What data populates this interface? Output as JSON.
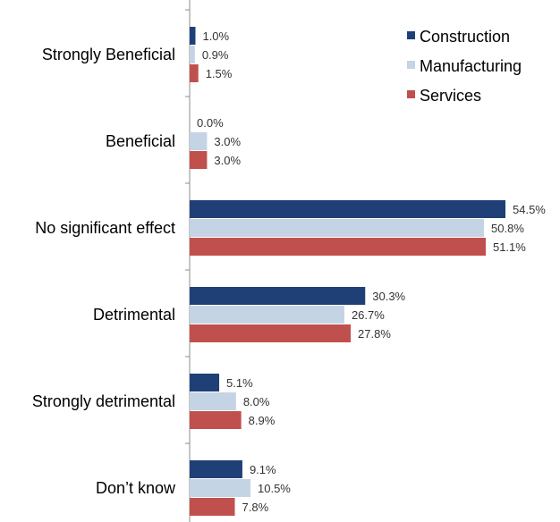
{
  "chart_data": {
    "type": "bar",
    "orientation": "horizontal",
    "title": "",
    "categories": [
      "Strongly Beneficial",
      "Beneficial",
      "No significant effect",
      "Detrimental",
      "Strongly detrimental",
      "Don’t know"
    ],
    "series": [
      {
        "name": "Construction",
        "color": "#1F3F77",
        "values": [
          1.0,
          0.0,
          54.5,
          30.3,
          5.1,
          9.1
        ],
        "labels": [
          "1.0%",
          "0.0%",
          "54.5%",
          "30.3%",
          "5.1%",
          "9.1%"
        ]
      },
      {
        "name": "Manufacturing",
        "color": "#C5D4E4",
        "values": [
          0.9,
          3.0,
          50.8,
          26.7,
          8.0,
          10.5
        ],
        "labels": [
          "0.9%",
          "3.0%",
          "50.8%",
          "26.7%",
          "8.0%",
          "10.5%"
        ]
      },
      {
        "name": "Services",
        "color": "#C0504D",
        "values": [
          1.5,
          3.0,
          51.1,
          27.8,
          8.9,
          7.8
        ],
        "labels": [
          "1.5%",
          "3.0%",
          "51.1%",
          "27.8%",
          "8.9%",
          "7.8%"
        ]
      }
    ],
    "xlim": [
      0,
      60
    ],
    "grid": false,
    "legend": "top-right"
  }
}
